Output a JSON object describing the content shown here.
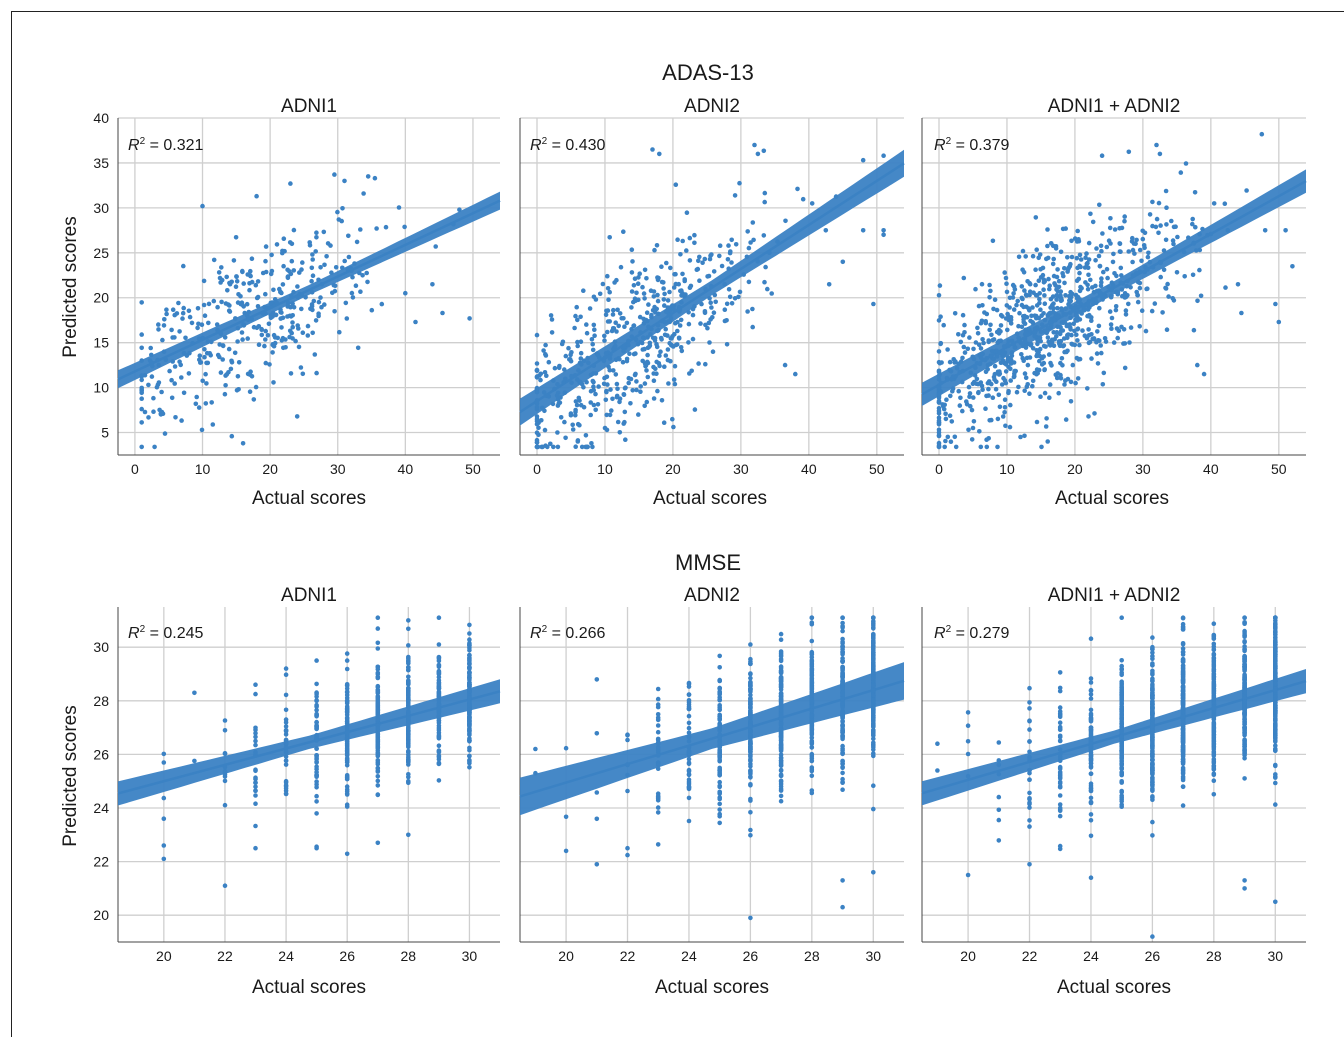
{
  "accent_color": "#3b82c4",
  "grid_color": "#cfcfcf",
  "chart_data": [
    {
      "type": "scatter",
      "group_title": "ADAS-13",
      "title": "ADNI1",
      "xlabel": "Actual scores",
      "ylabel": "Predicted scores",
      "xlim": [
        -2.5,
        54
      ],
      "ylim": [
        2.5,
        40
      ],
      "xticks": [
        0,
        10,
        20,
        30,
        40,
        50
      ],
      "yticks": [
        5,
        10,
        15,
        20,
        25,
        30,
        35,
        40
      ],
      "grid": true,
      "r2_value": "0.321",
      "fit": {
        "slope": 0.352,
        "intercept": 11.8,
        "band_width": 1.0
      },
      "synthetic": {
        "seed": 101,
        "n": 400,
        "xmin": 1,
        "xmax": 50,
        "xmean": 18,
        "xsd": 9,
        "noise": 4.2,
        "integer_x": false
      },
      "points": [
        [
          10,
          30.2
        ],
        [
          18,
          31.3
        ],
        [
          23,
          32.7
        ],
        [
          29.5,
          33.7
        ],
        [
          31,
          33
        ],
        [
          34.5,
          33.5
        ],
        [
          35.5,
          33.3
        ],
        [
          40,
          20.5
        ],
        [
          41.5,
          17.3
        ],
        [
          44,
          21.5
        ],
        [
          45.5,
          18.3
        ],
        [
          48,
          29.8
        ],
        [
          49.5,
          17.7
        ],
        [
          16,
          3.8
        ],
        [
          24,
          6.8
        ],
        [
          6,
          6.7
        ],
        [
          9,
          8.2
        ],
        [
          1,
          13
        ],
        [
          2,
          10.3
        ]
      ]
    },
    {
      "type": "scatter",
      "group_title": "ADAS-13",
      "title": "ADNI2",
      "xlabel": "Actual scores",
      "ylabel": "",
      "xlim": [
        -2.5,
        54
      ],
      "ylim": [
        2.5,
        40
      ],
      "xticks": [
        0,
        10,
        20,
        30,
        40,
        50
      ],
      "yticks": [
        5,
        10,
        15,
        20,
        25,
        30,
        35,
        40
      ],
      "grid": true,
      "r2_value": "0.430",
      "fit": {
        "slope": 0.49,
        "intercept": 8.5,
        "band_width": 1.5
      },
      "synthetic": {
        "seed": 202,
        "n": 560,
        "xmin": 0,
        "xmax": 52,
        "xmean": 14,
        "xsd": 9,
        "noise": 4.2,
        "integer_x": false
      },
      "points": [
        [
          17,
          36.5
        ],
        [
          18,
          36
        ],
        [
          32,
          37
        ],
        [
          32.5,
          36
        ],
        [
          48,
          35.3
        ],
        [
          51,
          35.8
        ],
        [
          40.5,
          30.5
        ],
        [
          42.5,
          27.5
        ],
        [
          43,
          21.5
        ],
        [
          45,
          24
        ],
        [
          48,
          27.5
        ],
        [
          49.5,
          19.3
        ],
        [
          51,
          27
        ],
        [
          51,
          27.5
        ],
        [
          36.5,
          12.5
        ],
        [
          38,
          11.5
        ],
        [
          3,
          5
        ],
        [
          6,
          4
        ],
        [
          8,
          3.8
        ],
        [
          13,
          4.2
        ],
        [
          10,
          5.5
        ],
        [
          0,
          9.5
        ]
      ]
    },
    {
      "type": "scatter",
      "group_title": "ADAS-13",
      "title": "ADNI1 + ADNI2",
      "xlabel": "Actual scores",
      "ylabel": "",
      "xlim": [
        -2.5,
        54
      ],
      "ylim": [
        2.5,
        40
      ],
      "xticks": [
        0,
        10,
        20,
        30,
        40,
        50
      ],
      "yticks": [
        5,
        10,
        15,
        20,
        25,
        30,
        35,
        40
      ],
      "grid": true,
      "r2_value": "0.379",
      "fit": {
        "slope": 0.42,
        "intercept": 10.3,
        "band_width": 1.3
      },
      "synthetic": {
        "seed": 303,
        "n": 900,
        "xmin": 0,
        "xmax": 52,
        "xmean": 16,
        "xsd": 9.5,
        "noise": 4.2,
        "integer_x": false
      },
      "points": [
        [
          47.5,
          38.2
        ],
        [
          32,
          37
        ],
        [
          32.5,
          36
        ],
        [
          24,
          35.8
        ],
        [
          40.5,
          30.5
        ],
        [
          42.5,
          27.5
        ],
        [
          48,
          27.5
        ],
        [
          49.5,
          19.3
        ],
        [
          50,
          17.3
        ],
        [
          51,
          27.5
        ],
        [
          52,
          23.5
        ],
        [
          44,
          21.5
        ],
        [
          44.5,
          18.3
        ],
        [
          38,
          12.5
        ],
        [
          39,
          11.5
        ],
        [
          16,
          4
        ],
        [
          22,
          6.8
        ],
        [
          5,
          5.5
        ],
        [
          7,
          4.2
        ],
        [
          12,
          4.5
        ]
      ]
    },
    {
      "type": "scatter",
      "group_title": "MMSE",
      "title": "ADNI1",
      "xlabel": "Actual scores",
      "ylabel": "Predicted scores",
      "xlim": [
        18.5,
        31
      ],
      "ylim": [
        19,
        31.5
      ],
      "xticks": [
        20,
        22,
        24,
        26,
        28,
        30
      ],
      "yticks": [
        20,
        22,
        24,
        26,
        28,
        30
      ],
      "grid": true,
      "r2_value": "0.245",
      "fit": {
        "slope": 0.305,
        "intercept": 18.9,
        "band_width": 0.45
      },
      "synthetic": {
        "seed": 404,
        "n": 650,
        "xmin": 20,
        "xmax": 30,
        "xmean": 27.5,
        "xsd": 2.5,
        "noise": 1.2,
        "integer_x": true
      },
      "points": [
        [
          22,
          21.1
        ],
        [
          20,
          22.1
        ],
        [
          20,
          22.6
        ],
        [
          23,
          22.5
        ],
        [
          25,
          22.5
        ],
        [
          27,
          22.7
        ],
        [
          28,
          23
        ],
        [
          28,
          31
        ],
        [
          29,
          30.1
        ],
        [
          30,
          30.1
        ],
        [
          21,
          28.3
        ],
        [
          23,
          28.6
        ],
        [
          26,
          29.5
        ],
        [
          25,
          29.5
        ],
        [
          24,
          29.2
        ]
      ]
    },
    {
      "type": "scatter",
      "group_title": "MMSE",
      "title": "ADNI2",
      "xlabel": "Actual scores",
      "ylabel": "",
      "xlim": [
        18.5,
        31
      ],
      "ylim": [
        19,
        31.5
      ],
      "xticks": [
        20,
        22,
        24,
        26,
        28,
        30
      ],
      "yticks": [
        20,
        22,
        24,
        26,
        28,
        30
      ],
      "grid": true,
      "r2_value": "0.266",
      "fit": {
        "slope": 0.345,
        "intercept": 18.05,
        "band_width": 0.7
      },
      "synthetic": {
        "seed": 505,
        "n": 900,
        "xmin": 19,
        "xmax": 30,
        "xmean": 27.5,
        "xsd": 2.6,
        "noise": 1.3,
        "integer_x": true
      },
      "points": [
        [
          26,
          19.9
        ],
        [
          29,
          20.3
        ],
        [
          29,
          21.3
        ],
        [
          30,
          21.6
        ],
        [
          21,
          21.9
        ],
        [
          20,
          22.4
        ],
        [
          22,
          22.5
        ],
        [
          19,
          26.2
        ],
        [
          19,
          25.3
        ],
        [
          21,
          28.8
        ],
        [
          26,
          30.1
        ],
        [
          29,
          30.6
        ],
        [
          30,
          30.9
        ]
      ]
    },
    {
      "type": "scatter",
      "group_title": "MMSE",
      "title": "ADNI1 + ADNI2",
      "xlabel": "Actual scores",
      "ylabel": "",
      "xlim": [
        18.5,
        31
      ],
      "ylim": [
        19,
        31.5
      ],
      "xticks": [
        20,
        22,
        24,
        26,
        28,
        30
      ],
      "yticks": [
        20,
        22,
        24,
        26,
        28,
        30
      ],
      "grid": true,
      "r2_value": "0.279",
      "fit": {
        "slope": 0.335,
        "intercept": 18.35,
        "band_width": 0.45
      },
      "synthetic": {
        "seed": 606,
        "n": 1300,
        "xmin": 19,
        "xmax": 30,
        "xmean": 27.5,
        "xsd": 2.6,
        "noise": 1.3,
        "integer_x": true
      },
      "points": [
        [
          26,
          19.2
        ],
        [
          29,
          21
        ],
        [
          29,
          21.3
        ],
        [
          30,
          20.5
        ],
        [
          24,
          21.4
        ],
        [
          20,
          21.5
        ],
        [
          22,
          21.9
        ],
        [
          19,
          26.4
        ],
        [
          19,
          25.4
        ],
        [
          26,
          29.8
        ],
        [
          29,
          30.6
        ],
        [
          30,
          30.9
        ],
        [
          28,
          29.9
        ]
      ]
    }
  ]
}
